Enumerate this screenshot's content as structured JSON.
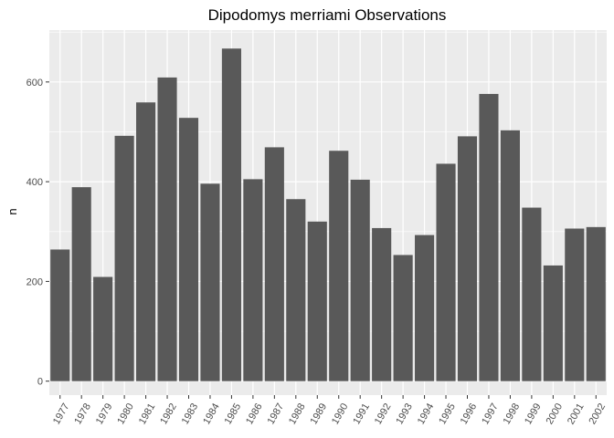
{
  "chart_data": {
    "type": "bar",
    "title": "Dipodomys merriami Observations",
    "xlabel": "",
    "ylabel": "n",
    "ylim": [
      -28,
      704
    ],
    "yticks": [
      0,
      200,
      400,
      600
    ],
    "grid": true,
    "categories": [
      "1977",
      "1978",
      "1979",
      "1980",
      "1981",
      "1982",
      "1983",
      "1984",
      "1985",
      "1986",
      "1987",
      "1988",
      "1989",
      "1990",
      "1991",
      "1992",
      "1993",
      "1994",
      "1995",
      "1996",
      "1997",
      "1998",
      "1999",
      "2000",
      "2001",
      "2002"
    ],
    "values": [
      264,
      389,
      209,
      492,
      559,
      609,
      528,
      396,
      667,
      405,
      469,
      365,
      320,
      462,
      404,
      307,
      253,
      293,
      436,
      491,
      576,
      503,
      348,
      232,
      306,
      309
    ],
    "bar_color": "#595959",
    "panel_color": "#ebebeb",
    "grid_color": "#ffffff"
  }
}
